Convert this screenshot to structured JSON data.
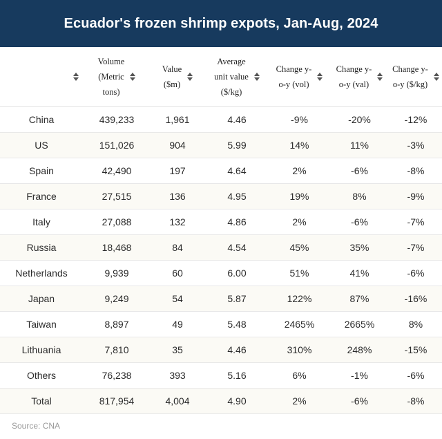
{
  "title": "Ecuador's frozen shrimp expots, Jan-Aug, 2024",
  "source": "Source: CNA",
  "colors": {
    "header_bg": "#173a5e",
    "title_text": "#ffffff",
    "zebra": "#fbfaf5"
  },
  "icons": {
    "sort": "sort-arrows-icon"
  },
  "chart_data": {
    "type": "table",
    "title": "Ecuador's frozen shrimp expots, Jan-Aug, 2024",
    "columns": [
      {
        "lines": [
          ""
        ]
      },
      {
        "lines": [
          "Volume",
          "(Metric",
          "tons)"
        ]
      },
      {
        "lines": [
          "Value",
          "($m)"
        ]
      },
      {
        "lines": [
          "Average",
          "unit value",
          "($/kg)"
        ]
      },
      {
        "lines": [
          "Change y-",
          "o-y (vol)"
        ]
      },
      {
        "lines": [
          "Change y-",
          "o-y (val)"
        ]
      },
      {
        "lines": [
          "Change y-",
          "o-y ($/kg)"
        ]
      }
    ],
    "rows": [
      [
        "China",
        "439,233",
        "1,961",
        "4.46",
        "-9%",
        "-20%",
        "-12%"
      ],
      [
        "US",
        "151,026",
        "904",
        "5.99",
        "14%",
        "11%",
        "-3%"
      ],
      [
        "Spain",
        "42,490",
        "197",
        "4.64",
        "2%",
        "-6%",
        "-8%"
      ],
      [
        "France",
        "27,515",
        "136",
        "4.95",
        "19%",
        "8%",
        "-9%"
      ],
      [
        "Italy",
        "27,088",
        "132",
        "4.86",
        "2%",
        "-6%",
        "-7%"
      ],
      [
        "Russia",
        "18,468",
        "84",
        "4.54",
        "45%",
        "35%",
        "-7%"
      ],
      [
        "Netherlands",
        "9,939",
        "60",
        "6.00",
        "51%",
        "41%",
        "-6%"
      ],
      [
        "Japan",
        "9,249",
        "54",
        "5.87",
        "122%",
        "87%",
        "-16%"
      ],
      [
        "Taiwan",
        "8,897",
        "49",
        "5.48",
        "2465%",
        "2665%",
        "8%"
      ],
      [
        "Lithuania",
        "7,810",
        "35",
        "4.46",
        "310%",
        "248%",
        "-15%"
      ],
      [
        "Others",
        "76,238",
        "393",
        "5.16",
        "6%",
        "-1%",
        "-6%"
      ],
      [
        "Total",
        "817,954",
        "4,004",
        "4.90",
        "2%",
        "-6%",
        "-8%"
      ]
    ]
  }
}
